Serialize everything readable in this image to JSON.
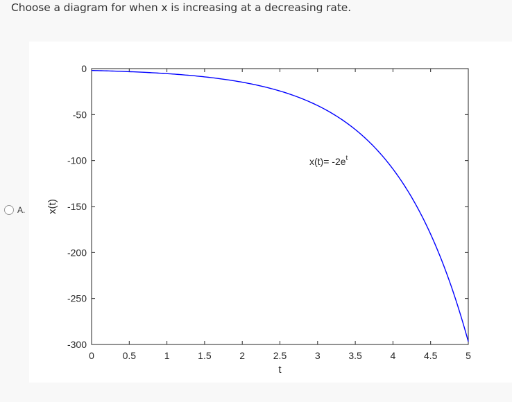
{
  "question": {
    "text": "Choose a diagram for when x is increasing at a decreasing rate."
  },
  "option": {
    "label": "A.",
    "selected": false
  },
  "chart_data": {
    "type": "line",
    "title": "",
    "annotation": "x(t)= -2e^t",
    "annotation_base": "x(t)= -2e",
    "annotation_sup": "t",
    "xlabel": "t",
    "ylabel": "x(t)",
    "xlim": [
      0,
      5
    ],
    "ylim": [
      -300,
      0
    ],
    "x_ticks": [
      "0",
      "0.5",
      "1",
      "1.5",
      "2",
      "2.5",
      "3",
      "3.5",
      "4",
      "4.5",
      "5"
    ],
    "y_ticks": [
      "0",
      "-50",
      "-100",
      "-150",
      "-200",
      "-250",
      "-300"
    ],
    "grid": false,
    "series": [
      {
        "name": "x(t)= -2e^t",
        "color": "#0000ff",
        "x": [
          0,
          0.5,
          1,
          1.5,
          2,
          2.5,
          3,
          3.5,
          4,
          4.5,
          5
        ],
        "values": [
          -2.0,
          -3.3,
          -5.44,
          -8.96,
          -14.78,
          -24.36,
          -40.17,
          -66.23,
          -109.2,
          -180.03,
          -296.83
        ]
      }
    ]
  }
}
